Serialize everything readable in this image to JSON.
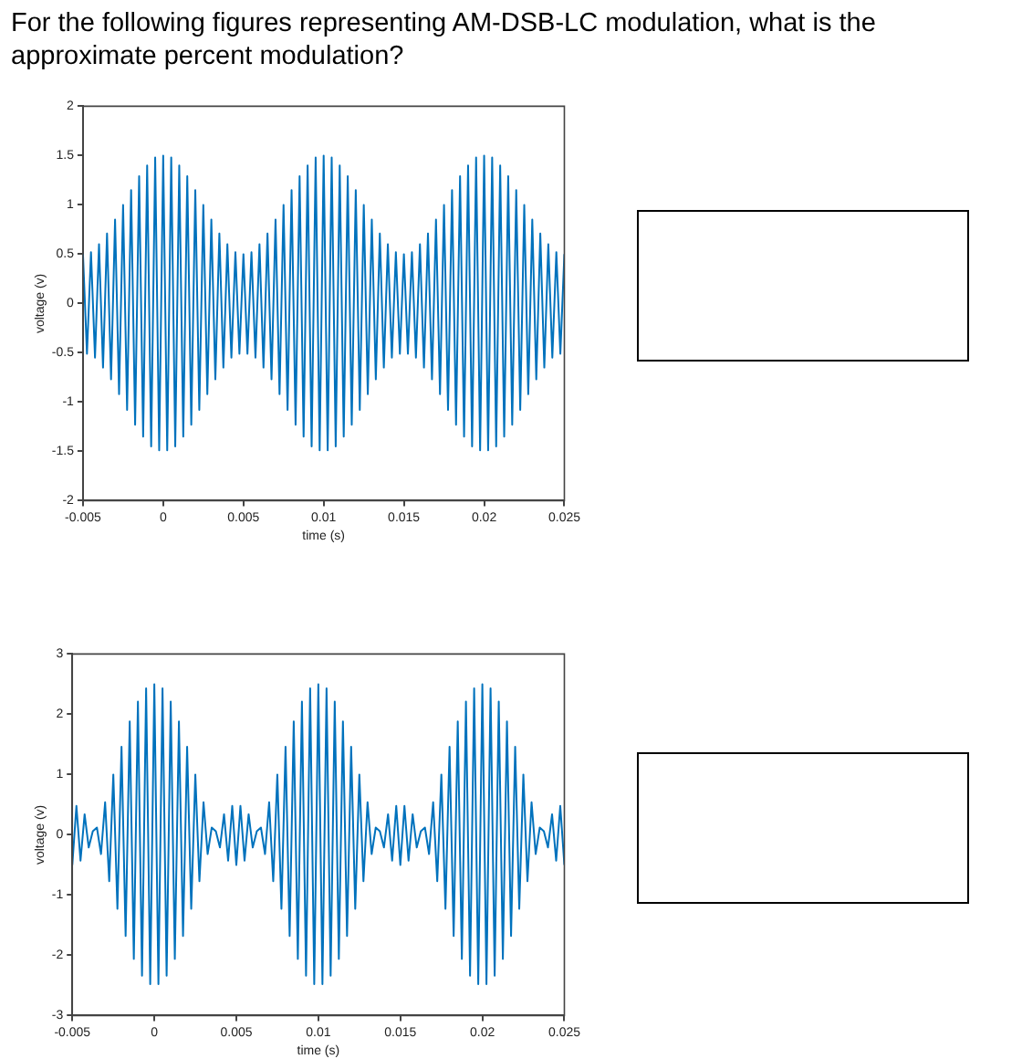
{
  "chart_data": [
    {
      "type": "line",
      "title": "For the following figures representing AM-DSB-LC modulation, what is the approximate percent modulation?",
      "xlabel": "time (s)",
      "ylabel": "voltage (v)",
      "color": "#0072bd",
      "xlim": [
        -0.005,
        0.025
      ],
      "xticks": [
        -0.005,
        0,
        0.005,
        0.01,
        0.015,
        0.02,
        0.025
      ],
      "ylim": [
        -2,
        2
      ],
      "yticks": [
        -2,
        -1.5,
        -1,
        -0.5,
        0,
        0.5,
        1,
        1.5,
        2
      ],
      "x": [
        -0.005,
        -0.00475,
        -0.0045,
        -0.00425,
        -0.004,
        -0.00375,
        -0.0035,
        -0.00325,
        -0.003,
        -0.00275,
        -0.0025,
        -0.00225,
        -0.002,
        -0.00175,
        -0.0015,
        -0.00125,
        -0.001,
        -0.00075,
        -0.0005,
        -0.00025,
        0,
        0.00025,
        0.0005,
        0.00075,
        0.001,
        0.00125,
        0.0015,
        0.00175,
        0.002,
        0.00225,
        0.0025,
        0.00275,
        0.003,
        0.00325,
        0.0035,
        0.00375,
        0.004,
        0.00425,
        0.0045,
        0.00475,
        0.005,
        0.00525,
        0.0055,
        0.00575,
        0.006,
        0.00625,
        0.0065,
        0.00675,
        0.007,
        0.00725,
        0.0075,
        0.00775,
        0.008,
        0.00825,
        0.0085,
        0.00875,
        0.009,
        0.00925,
        0.0095,
        0.00975,
        0.01,
        0.01025,
        0.0105,
        0.01075,
        0.011,
        0.01125,
        0.0115,
        0.01175,
        0.012,
        0.01225,
        0.0125,
        0.01275,
        0.013,
        0.01325,
        0.0135,
        0.01375,
        0.014,
        0.01425,
        0.0145,
        0.01475,
        0.015,
        0.01525,
        0.0155,
        0.01575,
        0.016,
        0.01625,
        0.0165,
        0.01675,
        0.017,
        0.01725,
        0.0175,
        0.01775,
        0.018,
        0.01825,
        0.0185,
        0.01875,
        0.019,
        0.01925,
        0.0195,
        0.01975,
        0.02,
        0.02025,
        0.0205,
        0.02075,
        0.021,
        0.02125,
        0.0215,
        0.02175,
        0.022,
        0.02225,
        0.0225,
        0.02275,
        0.023,
        0.02325,
        0.0235,
        0.02375,
        0.024,
        0.02425,
        0.0245,
        0.02475,
        0.025
      ],
      "values": [
        0.5,
        -0.51,
        0.52,
        -0.55,
        0.6,
        -0.65,
        0.71,
        -0.77,
        0.85,
        -0.92,
        1,
        -1.08,
        1.15,
        -1.23,
        1.29,
        -1.35,
        1.4,
        -1.45,
        1.48,
        -1.49,
        1.5,
        -1.49,
        1.48,
        -1.45,
        1.4,
        -1.35,
        1.29,
        -1.23,
        1.15,
        -1.08,
        1,
        -0.92,
        0.85,
        -0.77,
        0.71,
        -0.65,
        0.6,
        -0.55,
        0.52,
        -0.51,
        0.5,
        -0.51,
        0.52,
        -0.55,
        0.6,
        -0.65,
        0.71,
        -0.77,
        0.85,
        -0.92,
        1,
        -1.08,
        1.15,
        -1.23,
        1.29,
        -1.35,
        1.4,
        -1.45,
        1.48,
        -1.49,
        1.5,
        -1.49,
        1.48,
        -1.45,
        1.4,
        -1.35,
        1.29,
        -1.23,
        1.15,
        -1.08,
        1,
        -0.92,
        0.85,
        -0.77,
        0.71,
        -0.65,
        0.6,
        -0.55,
        0.52,
        -0.51,
        0.5,
        -0.51,
        0.52,
        -0.55,
        0.6,
        -0.65,
        0.71,
        -0.77,
        0.85,
        -0.92,
        1,
        -1.08,
        1.15,
        -1.23,
        1.29,
        -1.35,
        1.4,
        -1.45,
        1.48,
        -1.49,
        1.5,
        -1.49,
        1.48,
        -1.45,
        1.4,
        -1.35,
        1.29,
        -1.23,
        1.15,
        -1.08,
        1,
        -0.92,
        0.85,
        -0.77,
        0.71,
        -0.65,
        0.6,
        -0.55,
        0.52,
        -0.51,
        0.5
      ]
    },
    {
      "type": "line",
      "xlabel": "time (s)",
      "ylabel": "voltage (v)",
      "color": "#0072bd",
      "xlim": [
        -0.005,
        0.025
      ],
      "xticks": [
        -0.005,
        0,
        0.005,
        0.01,
        0.015,
        0.02,
        0.025
      ],
      "ylim": [
        -3,
        3
      ],
      "yticks": [
        -3,
        -2,
        -1,
        0,
        1,
        2,
        3
      ],
      "x": [
        -0.005,
        -0.00475,
        -0.0045,
        -0.00425,
        -0.004,
        -0.00375,
        -0.0035,
        -0.00325,
        -0.003,
        -0.00275,
        -0.0025,
        -0.00225,
        -0.002,
        -0.00175,
        -0.0015,
        -0.00125,
        -0.001,
        -0.00075,
        -0.0005,
        -0.00025,
        0,
        0.00025,
        0.0005,
        0.00075,
        0.001,
        0.00125,
        0.0015,
        0.00175,
        0.002,
        0.00225,
        0.0025,
        0.00275,
        0.003,
        0.00325,
        0.0035,
        0.00375,
        0.004,
        0.00425,
        0.0045,
        0.00475,
        0.005,
        0.00525,
        0.0055,
        0.00575,
        0.006,
        0.00625,
        0.0065,
        0.00675,
        0.007,
        0.00725,
        0.0075,
        0.00775,
        0.008,
        0.00825,
        0.0085,
        0.00875,
        0.009,
        0.00925,
        0.0095,
        0.00975,
        0.01,
        0.01025,
        0.0105,
        0.01075,
        0.011,
        0.01125,
        0.0115,
        0.01175,
        0.012,
        0.01225,
        0.0125,
        0.01275,
        0.013,
        0.01325,
        0.0135,
        0.01375,
        0.014,
        0.01425,
        0.0145,
        0.01475,
        0.015,
        0.01525,
        0.0155,
        0.01575,
        0.016,
        0.01625,
        0.0165,
        0.01675,
        0.017,
        0.01725,
        0.0175,
        0.01775,
        0.018,
        0.01825,
        0.0185,
        0.01875,
        0.019,
        0.01925,
        0.0195,
        0.01975,
        0.02,
        0.02025,
        0.0205,
        0.02075,
        0.021,
        0.02125,
        0.0215,
        0.02175,
        0.022,
        0.02225,
        0.0225,
        0.02275,
        0.023,
        0.02325,
        0.0235,
        0.02375,
        0.024,
        0.02425,
        0.0245,
        0.02475,
        0.025
      ],
      "values": [
        -0.5,
        0.48,
        -0.43,
        0.34,
        -0.21,
        0.06,
        0.12,
        -0.32,
        0.54,
        -0.77,
        1,
        -1.23,
        1.46,
        -1.68,
        1.88,
        -2.06,
        2.21,
        -2.34,
        2.43,
        -2.48,
        2.5,
        -2.48,
        2.43,
        -2.34,
        2.21,
        -2.06,
        1.88,
        -1.68,
        1.46,
        -1.23,
        1,
        -0.77,
        0.54,
        -0.32,
        0.12,
        0.06,
        -0.21,
        0.34,
        -0.43,
        0.48,
        -0.5,
        0.48,
        -0.43,
        0.34,
        -0.21,
        0.06,
        0.12,
        -0.32,
        0.54,
        -0.77,
        1,
        -1.23,
        1.46,
        -1.68,
        1.88,
        -2.06,
        2.21,
        -2.34,
        2.43,
        -2.48,
        2.5,
        -2.48,
        2.43,
        -2.34,
        2.21,
        -2.06,
        1.88,
        -1.68,
        1.46,
        -1.23,
        1,
        -0.77,
        0.54,
        -0.32,
        0.12,
        0.06,
        -0.21,
        0.34,
        -0.43,
        0.48,
        -0.5,
        0.48,
        -0.43,
        0.34,
        -0.21,
        0.06,
        0.12,
        -0.32,
        0.54,
        -0.77,
        1,
        -1.23,
        1.46,
        -1.68,
        1.88,
        -2.06,
        2.21,
        -2.34,
        2.43,
        -2.48,
        2.5,
        -2.48,
        2.43,
        -2.34,
        2.21,
        -2.06,
        1.88,
        -1.68,
        1.46,
        -1.23,
        1,
        -0.77,
        0.54,
        -0.32,
        0.12,
        0.06,
        -0.21,
        0.34,
        -0.43,
        0.48,
        -0.5
      ]
    }
  ]
}
